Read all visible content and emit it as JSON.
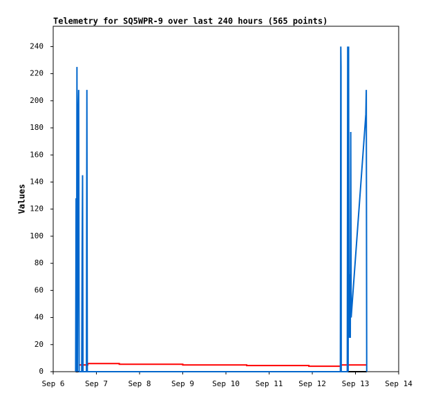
{
  "chart_data": {
    "type": "line",
    "title": "Telemetry for SQ5WPR-9 over last 240 hours (565 points)",
    "ylabel": "Values",
    "xlim": [
      6,
      14
    ],
    "xticks": [
      {
        "value": 6,
        "label": "Sep 6"
      },
      {
        "value": 7,
        "label": "Sep 7"
      },
      {
        "value": 8,
        "label": "Sep 8"
      },
      {
        "value": 9,
        "label": "Sep 9"
      },
      {
        "value": 10,
        "label": "Sep 10"
      },
      {
        "value": 11,
        "label": "Sep 11"
      },
      {
        "value": 12,
        "label": "Sep 12"
      },
      {
        "value": 13,
        "label": "Sep 13"
      },
      {
        "value": 14,
        "label": "Sep 14"
      }
    ],
    "ylim": [
      0,
      255
    ],
    "yticks": [
      0,
      20,
      40,
      60,
      80,
      100,
      120,
      140,
      160,
      180,
      200,
      220,
      240
    ],
    "grid": false,
    "series": [
      {
        "color": "#000000",
        "x": [
          6.52,
          13.26
        ],
        "values": [
          0,
          0
        ]
      },
      {
        "color": "#ff0000",
        "x": [
          6.6,
          6.8,
          6.8,
          7.53,
          7.53,
          9.0,
          9.0,
          10.48,
          10.48,
          11.92,
          11.92,
          12.66,
          12.66,
          13.26
        ],
        "values": [
          5,
          5,
          6,
          6,
          5.5,
          5.5,
          5,
          5,
          4.5,
          4.5,
          4,
          4,
          5,
          5
        ]
      },
      {
        "color": "#0066cc",
        "x": [
          6.52,
          6.53,
          6.54,
          6.55,
          6.56,
          6.58,
          6.59,
          6.6,
          6.66,
          6.67,
          6.68,
          6.69,
          6.77,
          6.78,
          6.79,
          12.65,
          12.66,
          12.665,
          12.67,
          12.81,
          12.82,
          12.83,
          12.84,
          12.85,
          12.87,
          12.88,
          12.89,
          12.9,
          13.24,
          13.25,
          13.26
        ],
        "values": [
          0,
          128,
          0,
          225,
          0,
          192,
          208,
          0,
          0,
          88,
          145,
          0,
          0,
          208,
          0,
          0,
          240,
          225,
          0,
          0,
          240,
          0,
          240,
          25,
          72,
          25,
          177,
          40,
          190,
          208,
          0
        ]
      }
    ]
  }
}
